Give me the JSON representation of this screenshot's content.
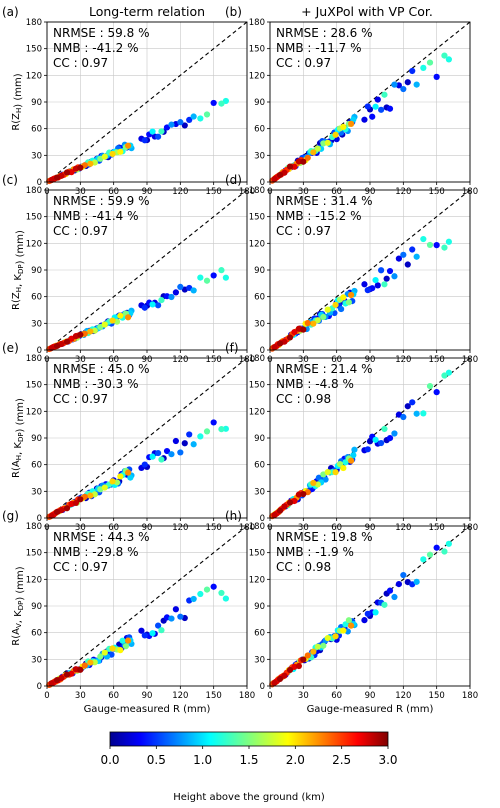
{
  "figure": {
    "column_titles": [
      "Long-term relation",
      "+ JuXPol with VP Cor."
    ],
    "xlabel": "Gauge-measured R (mm)",
    "row_ylabels": [
      "R(Z_H) (mm)",
      "R(Z_H, K_DP) (mm)",
      "R(A_H, K_DP) (mm)",
      "R(A_V, K_DP) (mm)"
    ],
    "colorbar": {
      "label": "Height above the ground (km)",
      "ticks": [
        "0.0",
        "0.5",
        "1.0",
        "1.5",
        "2.0",
        "2.5",
        "3.0"
      ],
      "range": [
        0,
        3
      ],
      "colormap": "jet"
    }
  },
  "chart_data": [
    {
      "panel": "(a)",
      "type": "scatter",
      "stats": [
        "NRMSE : 59.8 %",
        "NMB : -41.2 %",
        "CC : 0.97"
      ],
      "slope": 0.55,
      "scatter": 0.09,
      "xlim": [
        0,
        180
      ],
      "ylim": [
        0,
        180
      ],
      "xticks": [
        0,
        30,
        60,
        90,
        120,
        150,
        180
      ],
      "yticks": [
        0,
        30,
        60,
        90,
        120,
        150,
        180
      ]
    },
    {
      "panel": "(b)",
      "type": "scatter",
      "stats": [
        "NRMSE : 28.6 %",
        "NMB : -11.7 %",
        "CC : 0.97"
      ],
      "slope": 0.87,
      "scatter": 0.13,
      "xlim": [
        0,
        180
      ],
      "ylim": [
        0,
        180
      ],
      "xticks": [
        0,
        30,
        60,
        90,
        120,
        150,
        180
      ],
      "yticks": [
        0,
        30,
        60,
        90,
        120,
        150,
        180
      ]
    },
    {
      "panel": "(c)",
      "type": "scatter",
      "stats": [
        "NRMSE : 59.9 %",
        "NMB : -41.4 %",
        "CC : 0.97"
      ],
      "slope": 0.55,
      "scatter": 0.09,
      "xlim": [
        0,
        180
      ],
      "ylim": [
        0,
        180
      ],
      "xticks": [
        0,
        30,
        60,
        90,
        120,
        150,
        180
      ],
      "yticks": [
        0,
        30,
        60,
        90,
        120,
        150,
        180
      ]
    },
    {
      "panel": "(d)",
      "type": "scatter",
      "stats": [
        "NRMSE : 31.4 %",
        "NMB : -15.2 %",
        "CC : 0.97"
      ],
      "slope": 0.82,
      "scatter": 0.13,
      "xlim": [
        0,
        180
      ],
      "ylim": [
        0,
        180
      ],
      "xticks": [
        0,
        30,
        60,
        90,
        120,
        150,
        180
      ],
      "yticks": [
        0,
        30,
        60,
        90,
        120,
        150,
        180
      ]
    },
    {
      "panel": "(e)",
      "type": "scatter",
      "stats": [
        "NRMSE : 45.0 %",
        "NMB : -30.3 %",
        "CC : 0.97"
      ],
      "slope": 0.68,
      "scatter": 0.11,
      "xlim": [
        0,
        180
      ],
      "ylim": [
        0,
        180
      ],
      "xticks": [
        0,
        30,
        60,
        90,
        120,
        150,
        180
      ],
      "yticks": [
        0,
        30,
        60,
        90,
        120,
        150,
        180
      ]
    },
    {
      "panel": "(f)",
      "type": "scatter",
      "stats": [
        "NRMSE : 21.4 %",
        "NMB : -4.8 %",
        "CC : 0.98"
      ],
      "slope": 0.93,
      "scatter": 0.11,
      "xlim": [
        0,
        180
      ],
      "ylim": [
        0,
        180
      ],
      "xticks": [
        0,
        30,
        60,
        90,
        120,
        150,
        180
      ],
      "yticks": [
        0,
        30,
        60,
        90,
        120,
        150,
        180
      ]
    },
    {
      "panel": "(g)",
      "type": "scatter",
      "stats": [
        "NRMSE : 44.3 %",
        "NMB : -29.8 %",
        "CC : 0.97"
      ],
      "slope": 0.68,
      "scatter": 0.11,
      "xlim": [
        0,
        180
      ],
      "ylim": [
        0,
        180
      ],
      "xticks": [
        0,
        30,
        60,
        90,
        120,
        150,
        180
      ],
      "yticks": [
        0,
        30,
        60,
        90,
        120,
        150,
        180
      ]
    },
    {
      "panel": "(h)",
      "type": "scatter",
      "stats": [
        "NRMSE : 19.8 %",
        "NMB : -1.9 %",
        "CC : 0.98"
      ],
      "slope": 0.96,
      "scatter": 0.1,
      "xlim": [
        0,
        180
      ],
      "ylim": [
        0,
        180
      ],
      "xticks": [
        0,
        30,
        60,
        90,
        120,
        150,
        180
      ],
      "yticks": [
        0,
        30,
        60,
        90,
        120,
        150,
        180
      ]
    }
  ],
  "gauge_points": [
    {
      "x": 2,
      "h": 2.4
    },
    {
      "x": 3,
      "h": 2.1
    },
    {
      "x": 4,
      "h": 2.8
    },
    {
      "x": 5,
      "h": 2.3
    },
    {
      "x": 5,
      "h": 1.8
    },
    {
      "x": 6,
      "h": 2.7
    },
    {
      "x": 7,
      "h": 2.5
    },
    {
      "x": 8,
      "h": 2.2
    },
    {
      "x": 8,
      "h": 1.9
    },
    {
      "x": 9,
      "h": 2.9
    },
    {
      "x": 10,
      "h": 2.6
    },
    {
      "x": 11,
      "h": 1.7
    },
    {
      "x": 12,
      "h": 2.3
    },
    {
      "x": 13,
      "h": 2.8
    },
    {
      "x": 14,
      "h": 0.4
    },
    {
      "x": 15,
      "h": 2.5
    },
    {
      "x": 16,
      "h": 1.4
    },
    {
      "x": 17,
      "h": 2.0
    },
    {
      "x": 18,
      "h": 2.9
    },
    {
      "x": 19,
      "h": 0.3
    },
    {
      "x": 20,
      "h": 2.4
    },
    {
      "x": 21,
      "h": 1.1
    },
    {
      "x": 22,
      "h": 2.7
    },
    {
      "x": 23,
      "h": 0.5
    },
    {
      "x": 24,
      "h": 2.2
    },
    {
      "x": 25,
      "h": 0.2
    },
    {
      "x": 26,
      "h": 2.8
    },
    {
      "x": 27,
      "h": 1.6
    },
    {
      "x": 28,
      "h": 2.5
    },
    {
      "x": 29,
      "h": 0.6
    },
    {
      "x": 30,
      "h": 2.9
    },
    {
      "x": 31,
      "h": 0.3
    },
    {
      "x": 32,
      "h": 1.9
    },
    {
      "x": 33,
      "h": 0.8
    },
    {
      "x": 34,
      "h": 2.3
    },
    {
      "x": 35,
      "h": 0.2
    },
    {
      "x": 36,
      "h": 0.9
    },
    {
      "x": 37,
      "h": 1.3
    },
    {
      "x": 38,
      "h": 0.4
    },
    {
      "x": 39,
      "h": 2.1
    },
    {
      "x": 40,
      "h": 0.5
    },
    {
      "x": 41,
      "h": 1.2
    },
    {
      "x": 42,
      "h": 0.3
    },
    {
      "x": 43,
      "h": 1.7
    },
    {
      "x": 44,
      "h": 0.7
    },
    {
      "x": 45,
      "h": 0.2
    },
    {
      "x": 46,
      "h": 1.0
    },
    {
      "x": 47,
      "h": 0.6
    },
    {
      "x": 48,
      "h": 1.5
    },
    {
      "x": 49,
      "h": 0.3
    },
    {
      "x": 50,
      "h": 0.8
    },
    {
      "x": 52,
      "h": 1.8
    },
    {
      "x": 53,
      "h": 0.4
    },
    {
      "x": 54,
      "h": 0.9
    },
    {
      "x": 55,
      "h": 0.2
    },
    {
      "x": 56,
      "h": 1.3
    },
    {
      "x": 58,
      "h": 0.6
    },
    {
      "x": 59,
      "h": 2.0
    },
    {
      "x": 60,
      "h": 0.3
    },
    {
      "x": 61,
      "h": 1.1
    },
    {
      "x": 62,
      "h": 0.5
    },
    {
      "x": 63,
      "h": 1.6
    },
    {
      "x": 64,
      "h": 0.7
    },
    {
      "x": 65,
      "h": 0.2
    },
    {
      "x": 66,
      "h": 1.9
    },
    {
      "x": 67,
      "h": 0.4
    },
    {
      "x": 68,
      "h": 1.2
    },
    {
      "x": 70,
      "h": 0.8
    },
    {
      "x": 71,
      "h": 1.5
    },
    {
      "x": 72,
      "h": 0.3
    },
    {
      "x": 73,
      "h": 2.2
    },
    {
      "x": 74,
      "h": 0.6
    },
    {
      "x": 75,
      "h": 1.0
    },
    {
      "x": 76,
      "h": 0.9
    },
    {
      "x": 85,
      "h": 0.3
    },
    {
      "x": 88,
      "h": 0.5
    },
    {
      "x": 90,
      "h": 0.2
    },
    {
      "x": 92,
      "h": 0.4
    },
    {
      "x": 95,
      "h": 1.1
    },
    {
      "x": 97,
      "h": 0.3
    },
    {
      "x": 100,
      "h": 0.6
    },
    {
      "x": 103,
      "h": 1.3
    },
    {
      "x": 105,
      "h": 0.2
    },
    {
      "x": 108,
      "h": 0.4
    },
    {
      "x": 112,
      "h": 0.8
    },
    {
      "x": 116,
      "h": 0.3
    },
    {
      "x": 120,
      "h": 0.7
    },
    {
      "x": 124,
      "h": 0.2
    },
    {
      "x": 128,
      "h": 0.5
    },
    {
      "x": 132,
      "h": 0.9
    },
    {
      "x": 138,
      "h": 1.2
    },
    {
      "x": 144,
      "h": 1.4
    },
    {
      "x": 150,
      "h": 0.4
    },
    {
      "x": 157,
      "h": 1.3
    },
    {
      "x": 161,
      "h": 1.2
    }
  ]
}
